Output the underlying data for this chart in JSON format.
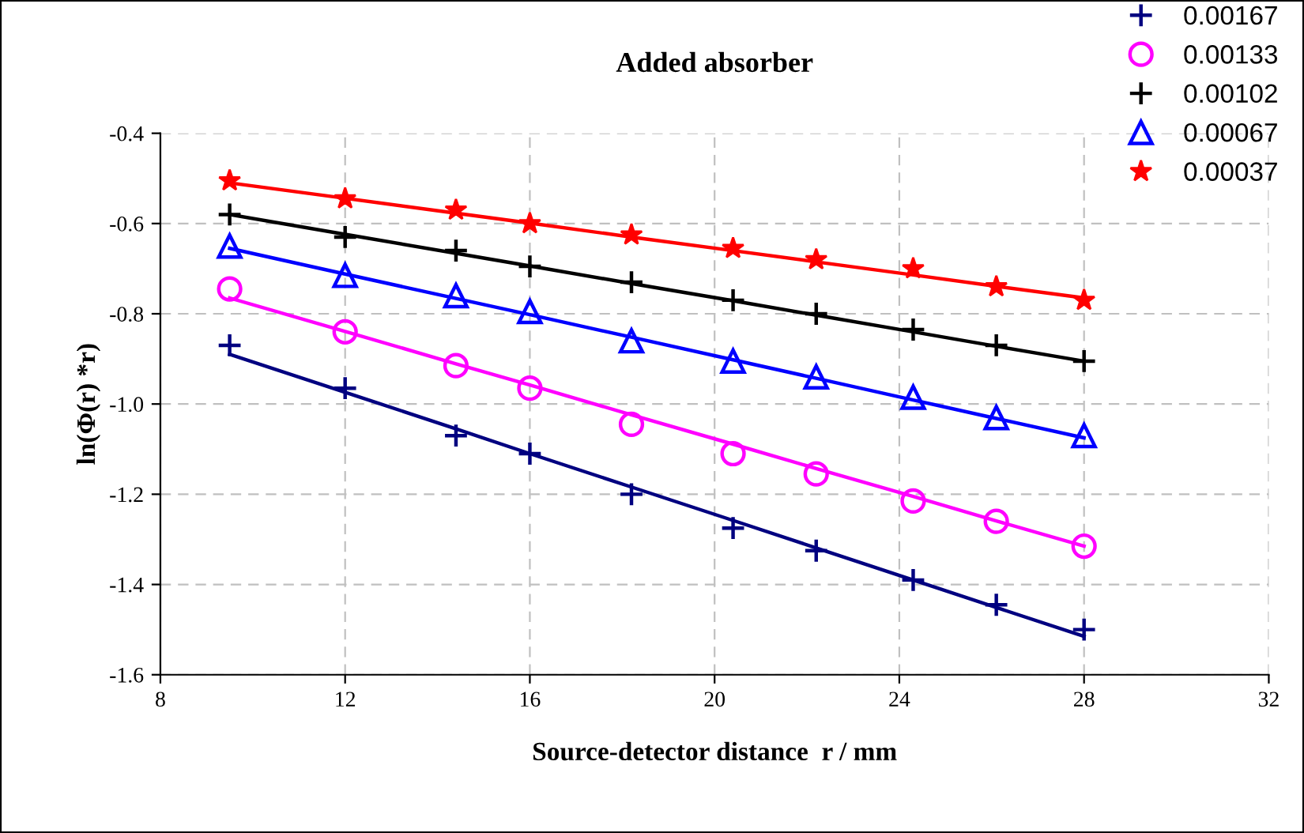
{
  "chart_data": {
    "type": "scatter",
    "title": "Added absorber",
    "xlabel": "Source-detector distance  r / mm",
    "ylabel": "ln(Φ(r) *r)",
    "x": [
      9.5,
      12,
      14.4,
      16,
      18.2,
      20.4,
      22.2,
      24.3,
      26.1,
      28
    ],
    "series": [
      {
        "name": "0.00167",
        "color": "#000080",
        "marker": "cross",
        "values": [
          -0.87,
          -0.965,
          -1.07,
          -1.11,
          -1.2,
          -1.275,
          -1.325,
          -1.39,
          -1.445,
          -1.5
        ]
      },
      {
        "name": "0.00133",
        "color": "#ff00ff",
        "marker": "circle",
        "values": [
          -0.745,
          -0.84,
          -0.915,
          -0.965,
          -1.045,
          -1.11,
          -1.155,
          -1.215,
          -1.26,
          -1.315
        ]
      },
      {
        "name": "0.00102",
        "color": "#000000",
        "marker": "cross",
        "values": [
          -0.58,
          -0.63,
          -0.66,
          -0.695,
          -0.73,
          -0.77,
          -0.8,
          -0.835,
          -0.87,
          -0.905
        ]
      },
      {
        "name": "0.00067",
        "color": "#0000ff",
        "marker": "triangle",
        "values": [
          -0.65,
          -0.715,
          -0.76,
          -0.795,
          -0.86,
          -0.905,
          -0.94,
          -0.985,
          -1.03,
          -1.07
        ]
      },
      {
        "name": "0.00037",
        "color": "#ff0000",
        "marker": "star",
        "values": [
          -0.505,
          -0.545,
          -0.57,
          -0.6,
          -0.625,
          -0.655,
          -0.68,
          -0.7,
          -0.74,
          -0.77
        ]
      },
      {
        "type": "line",
        "color": "#000080",
        "values": [
          -0.89,
          -0.974,
          -1.055,
          -1.11,
          -1.184,
          -1.258,
          -1.319,
          -1.39,
          -1.451,
          -1.515
        ]
      },
      {
        "type": "line",
        "color": "#ff00ff",
        "values": [
          -0.765,
          -0.839,
          -0.911,
          -0.958,
          -1.024,
          -1.089,
          -1.143,
          -1.205,
          -1.259,
          -1.315
        ]
      },
      {
        "type": "line",
        "color": "#000000",
        "values": [
          -0.58,
          -0.624,
          -0.666,
          -0.694,
          -0.733,
          -0.771,
          -0.803,
          -0.84,
          -0.872,
          -0.905
        ]
      },
      {
        "type": "line",
        "color": "#0000ff",
        "values": [
          -0.655,
          -0.712,
          -0.766,
          -0.802,
          -0.852,
          -0.902,
          -0.943,
          -0.991,
          -1.032,
          -1.075
        ]
      },
      {
        "type": "line",
        "color": "#ff0000",
        "values": [
          -0.51,
          -0.544,
          -0.577,
          -0.599,
          -0.63,
          -0.66,
          -0.685,
          -0.714,
          -0.739,
          -0.765
        ]
      }
    ],
    "xlim": [
      8,
      32
    ],
    "xticks": [
      8,
      12,
      16,
      20,
      24,
      28,
      32
    ],
    "ylim": [
      -1.6,
      -0.4
    ],
    "yticks": [
      {
        "value": -1.6,
        "label": "-1.6"
      },
      {
        "value": -1.4,
        "label": "-1.4"
      },
      {
        "value": -1.2,
        "label": "-1.2"
      },
      {
        "value": -1.0,
        "label": "-1.0"
      },
      {
        "value": -0.8,
        "label": "-0.8"
      },
      {
        "value": -0.6,
        "label": "-0.6"
      },
      {
        "value": -0.4,
        "label": "-0.4"
      }
    ],
    "grid": true,
    "legend": "top right"
  }
}
